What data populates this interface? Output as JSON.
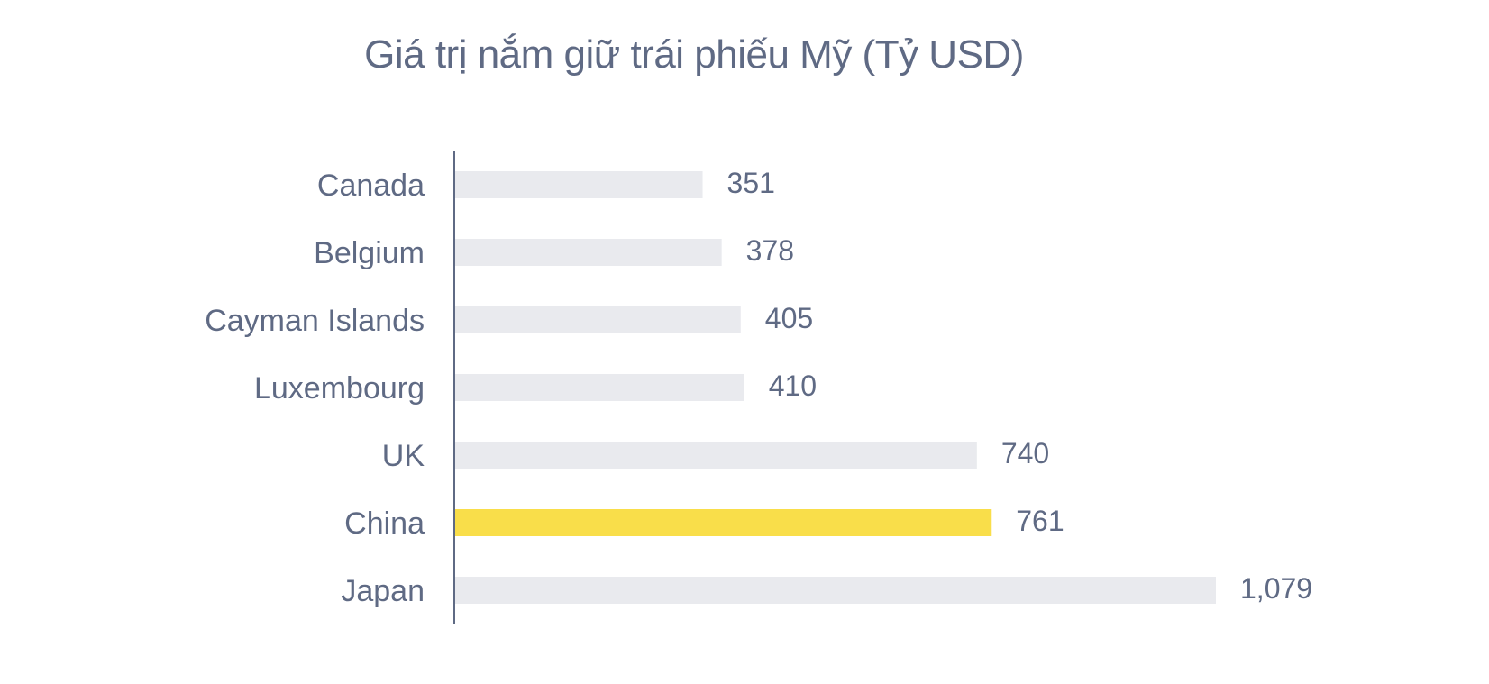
{
  "chart_data": {
    "type": "bar",
    "orientation": "horizontal",
    "title": "Giá trị nắm giữ trái phiếu Mỹ (Tỷ USD)",
    "categories": [
      "Canada",
      "Belgium",
      "Cayman Islands",
      "Luxembourg",
      "UK",
      "China",
      "Japan"
    ],
    "values": [
      351,
      378,
      405,
      410,
      740,
      761,
      1079
    ],
    "value_labels": [
      "351",
      "378",
      "405",
      "410",
      "740",
      "761",
      "1,079"
    ],
    "highlight_category": "China",
    "bar_color": "#e9eaee",
    "highlight_color": "#f9de4a",
    "axis_color": "#5f6a84",
    "text_color": "#5f6a84",
    "grid": false,
    "legend": "none"
  }
}
